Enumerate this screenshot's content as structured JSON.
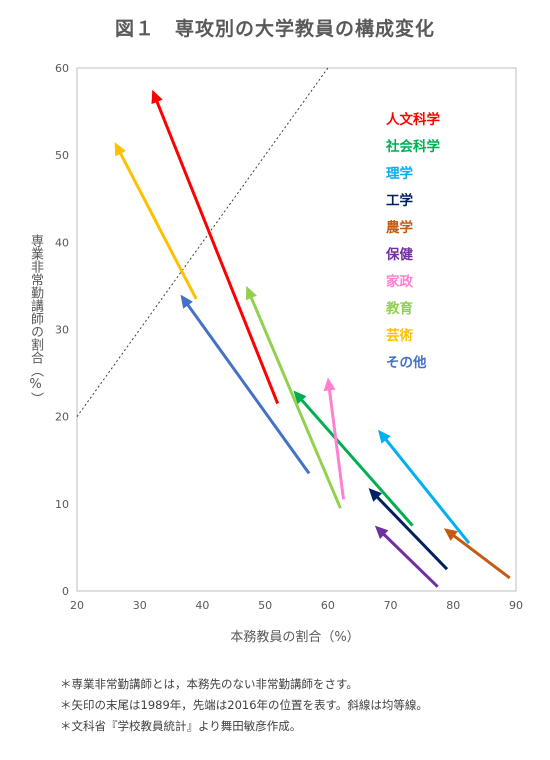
{
  "chart_data": {
    "type": "scatter",
    "title": "図１　専攻別の大学教員の構成変化",
    "xlabel": "本務教員の割合（%）",
    "ylabel": "専業非常勤講師の割合（%）",
    "xlim": [
      20,
      90
    ],
    "ylim": [
      0,
      60
    ],
    "x_ticks": [
      "20",
      "30",
      "40",
      "50",
      "60",
      "70",
      "80",
      "90"
    ],
    "y_ticks": [
      "0",
      "10",
      "20",
      "30",
      "40",
      "50",
      "60"
    ],
    "grid": false,
    "legend_position": "top-right",
    "reference_line": {
      "style": "dotted",
      "points": [
        [
          20,
          20
        ],
        [
          60,
          60
        ]
      ]
    },
    "series": [
      {
        "name": "人文科学",
        "color": "#ff0000",
        "start": [
          52.0,
          21.5
        ],
        "end": [
          32.0,
          57.5
        ]
      },
      {
        "name": "社会科学",
        "color": "#00b050",
        "start": [
          73.5,
          7.5
        ],
        "end": [
          54.5,
          23.0
        ]
      },
      {
        "name": "理学",
        "color": "#00b0f0",
        "start": [
          82.5,
          5.5
        ],
        "end": [
          68.0,
          18.5
        ]
      },
      {
        "name": "工学",
        "color": "#002060",
        "start": [
          79.0,
          2.5
        ],
        "end": [
          66.5,
          11.8
        ]
      },
      {
        "name": "農学",
        "color": "#c55a11",
        "start": [
          89.0,
          1.5
        ],
        "end": [
          78.5,
          7.2
        ]
      },
      {
        "name": "保健",
        "color": "#7030a0",
        "start": [
          77.5,
          0.5
        ],
        "end": [
          67.5,
          7.5
        ]
      },
      {
        "name": "家政",
        "color": "#ff80d0",
        "start": [
          62.5,
          10.5
        ],
        "end": [
          60.0,
          24.5
        ]
      },
      {
        "name": "教育",
        "color": "#92d050",
        "start": [
          62.0,
          9.5
        ],
        "end": [
          47.0,
          35.0
        ]
      },
      {
        "name": "芸術",
        "color": "#ffc000",
        "start": [
          39.0,
          33.5
        ],
        "end": [
          26.0,
          51.5
        ]
      },
      {
        "name": "その他",
        "color": "#4472c4",
        "start": [
          57.0,
          13.5
        ],
        "end": [
          36.5,
          34.0
        ]
      }
    ]
  },
  "notes": [
    "＊専業非常勤講師とは，本務先のない非常勤講師をさす。",
    "＊矢印の末尾は1989年，先端は2016年の位置を表す。斜線は均等線。",
    "＊文科省『学校教員統計』より舞田敏彦作成。"
  ]
}
